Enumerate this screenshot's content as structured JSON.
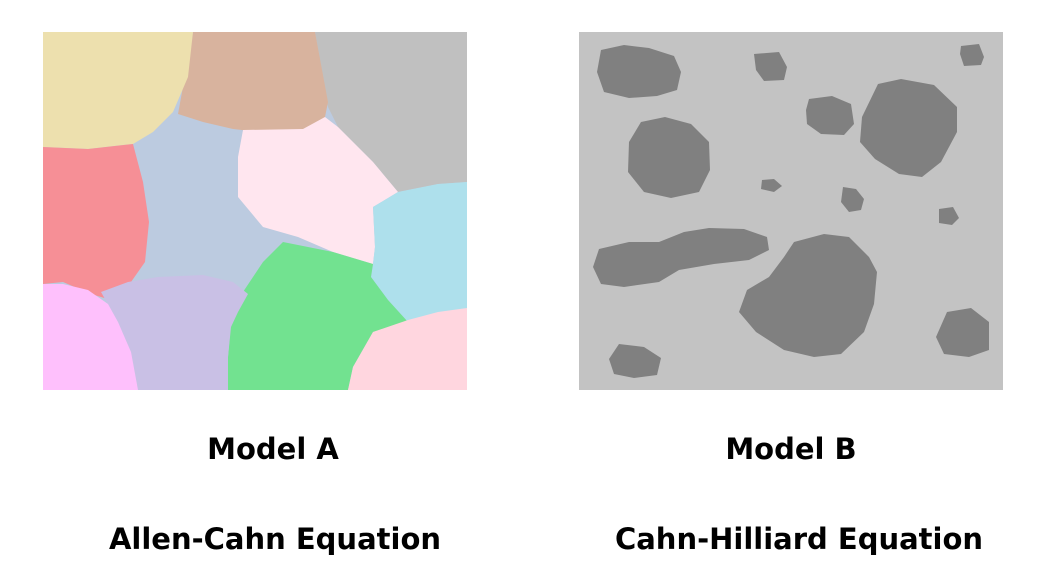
{
  "panels": [
    {
      "title": "Model A",
      "equation": "Allen-Cahn Equation",
      "grain_colors": [
        "#ede0ae",
        "#d8b39e",
        "#c0c0c0",
        "#f68f96",
        "#bccbe0",
        "#ffe6ef",
        "#aee0ec",
        "#fec0fc",
        "#c9c0e5",
        "#72e290",
        "#ffd6df"
      ]
    },
    {
      "title": "Model B",
      "equation": "Cahn-Hilliard Equation",
      "background_color": "#c3c3c3",
      "particle_color": "#808080"
    }
  ]
}
